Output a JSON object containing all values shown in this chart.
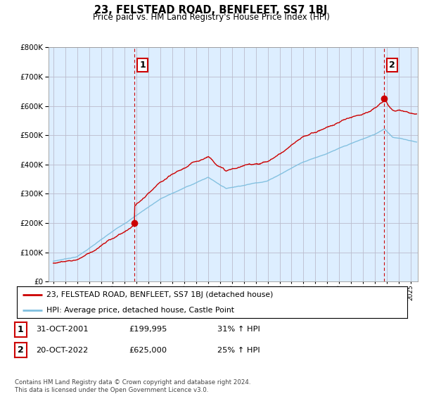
{
  "title": "23, FELSTEAD ROAD, BENFLEET, SS7 1BJ",
  "subtitle": "Price paid vs. HM Land Registry's House Price Index (HPI)",
  "hpi_color": "#7fbfdf",
  "price_color": "#cc0000",
  "vline_color": "#cc0000",
  "background_color": "#ffffff",
  "plot_bg_color": "#ddeeff",
  "grid_color": "#bbbbcc",
  "sale1_year": 2001.83,
  "sale1_price": 199995,
  "sale1_label": "1",
  "sale2_year": 2022.79,
  "sale2_price": 625000,
  "sale2_label": "2",
  "legend_price_label": "23, FELSTEAD ROAD, BENFLEET, SS7 1BJ (detached house)",
  "legend_hpi_label": "HPI: Average price, detached house, Castle Point",
  "table_row1": [
    "1",
    "31-OCT-2001",
    "£199,995",
    "31% ↑ HPI"
  ],
  "table_row2": [
    "2",
    "20-OCT-2022",
    "£625,000",
    "25% ↑ HPI"
  ],
  "footnote": "Contains HM Land Registry data © Crown copyright and database right 2024.\nThis data is licensed under the Open Government Licence v3.0.",
  "ylim_max": 800000,
  "xlim_start": 1994.6,
  "xlim_end": 2025.6
}
